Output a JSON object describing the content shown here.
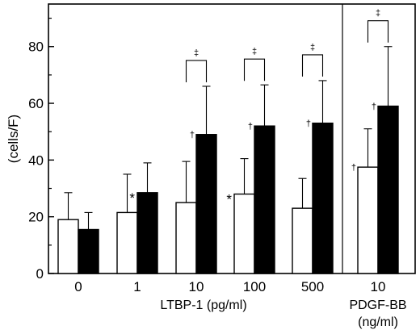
{
  "chart_data": {
    "type": "bar",
    "title": "",
    "ylabel": "(cells/F)",
    "ylim": [
      0,
      95
    ],
    "yticks": [
      0,
      20,
      40,
      60,
      80
    ],
    "grid": false,
    "legend": "none",
    "bar_colors": {
      "open": "#ffffff",
      "filled": "#000000",
      "stroke": "#000000"
    },
    "groups": [
      {
        "label": "0",
        "section": "ltbp",
        "open": {
          "value": 19,
          "err": 9.5,
          "mark": ""
        },
        "filled": {
          "value": 15.5,
          "err": 6,
          "mark": ""
        },
        "bracket": ""
      },
      {
        "label": "1",
        "section": "ltbp",
        "open": {
          "value": 21.5,
          "err": 13.5,
          "mark": ""
        },
        "filled": {
          "value": 28.5,
          "err": 10.5,
          "mark": "*"
        },
        "bracket": ""
      },
      {
        "label": "10",
        "section": "ltbp",
        "open": {
          "value": 25,
          "err": 14.5,
          "mark": ""
        },
        "filled": {
          "value": 49,
          "err": 17,
          "mark": "†"
        },
        "bracket": "‡"
      },
      {
        "label": "100",
        "section": "ltbp",
        "open": {
          "value": 28,
          "err": 12.5,
          "mark": "*"
        },
        "filled": {
          "value": 52,
          "err": 14.5,
          "mark": "†"
        },
        "bracket": "‡"
      },
      {
        "label": "500",
        "section": "ltbp",
        "open": {
          "value": 23,
          "err": 10.5,
          "mark": ""
        },
        "filled": {
          "value": 53,
          "err": 15,
          "mark": "†"
        },
        "bracket": "‡"
      },
      {
        "label": "10",
        "section": "pdgf",
        "open": {
          "value": 37.5,
          "err": 13.5,
          "mark": "†"
        },
        "filled": {
          "value": 59,
          "err": 21,
          "mark": "†"
        },
        "bracket": "‡"
      }
    ],
    "xlabel_ltbp": "LTBP-1 (pg/ml)",
    "xlabel_pdgf_line1": "PDGF-BB",
    "xlabel_pdgf_line2": "(ng/ml)"
  }
}
